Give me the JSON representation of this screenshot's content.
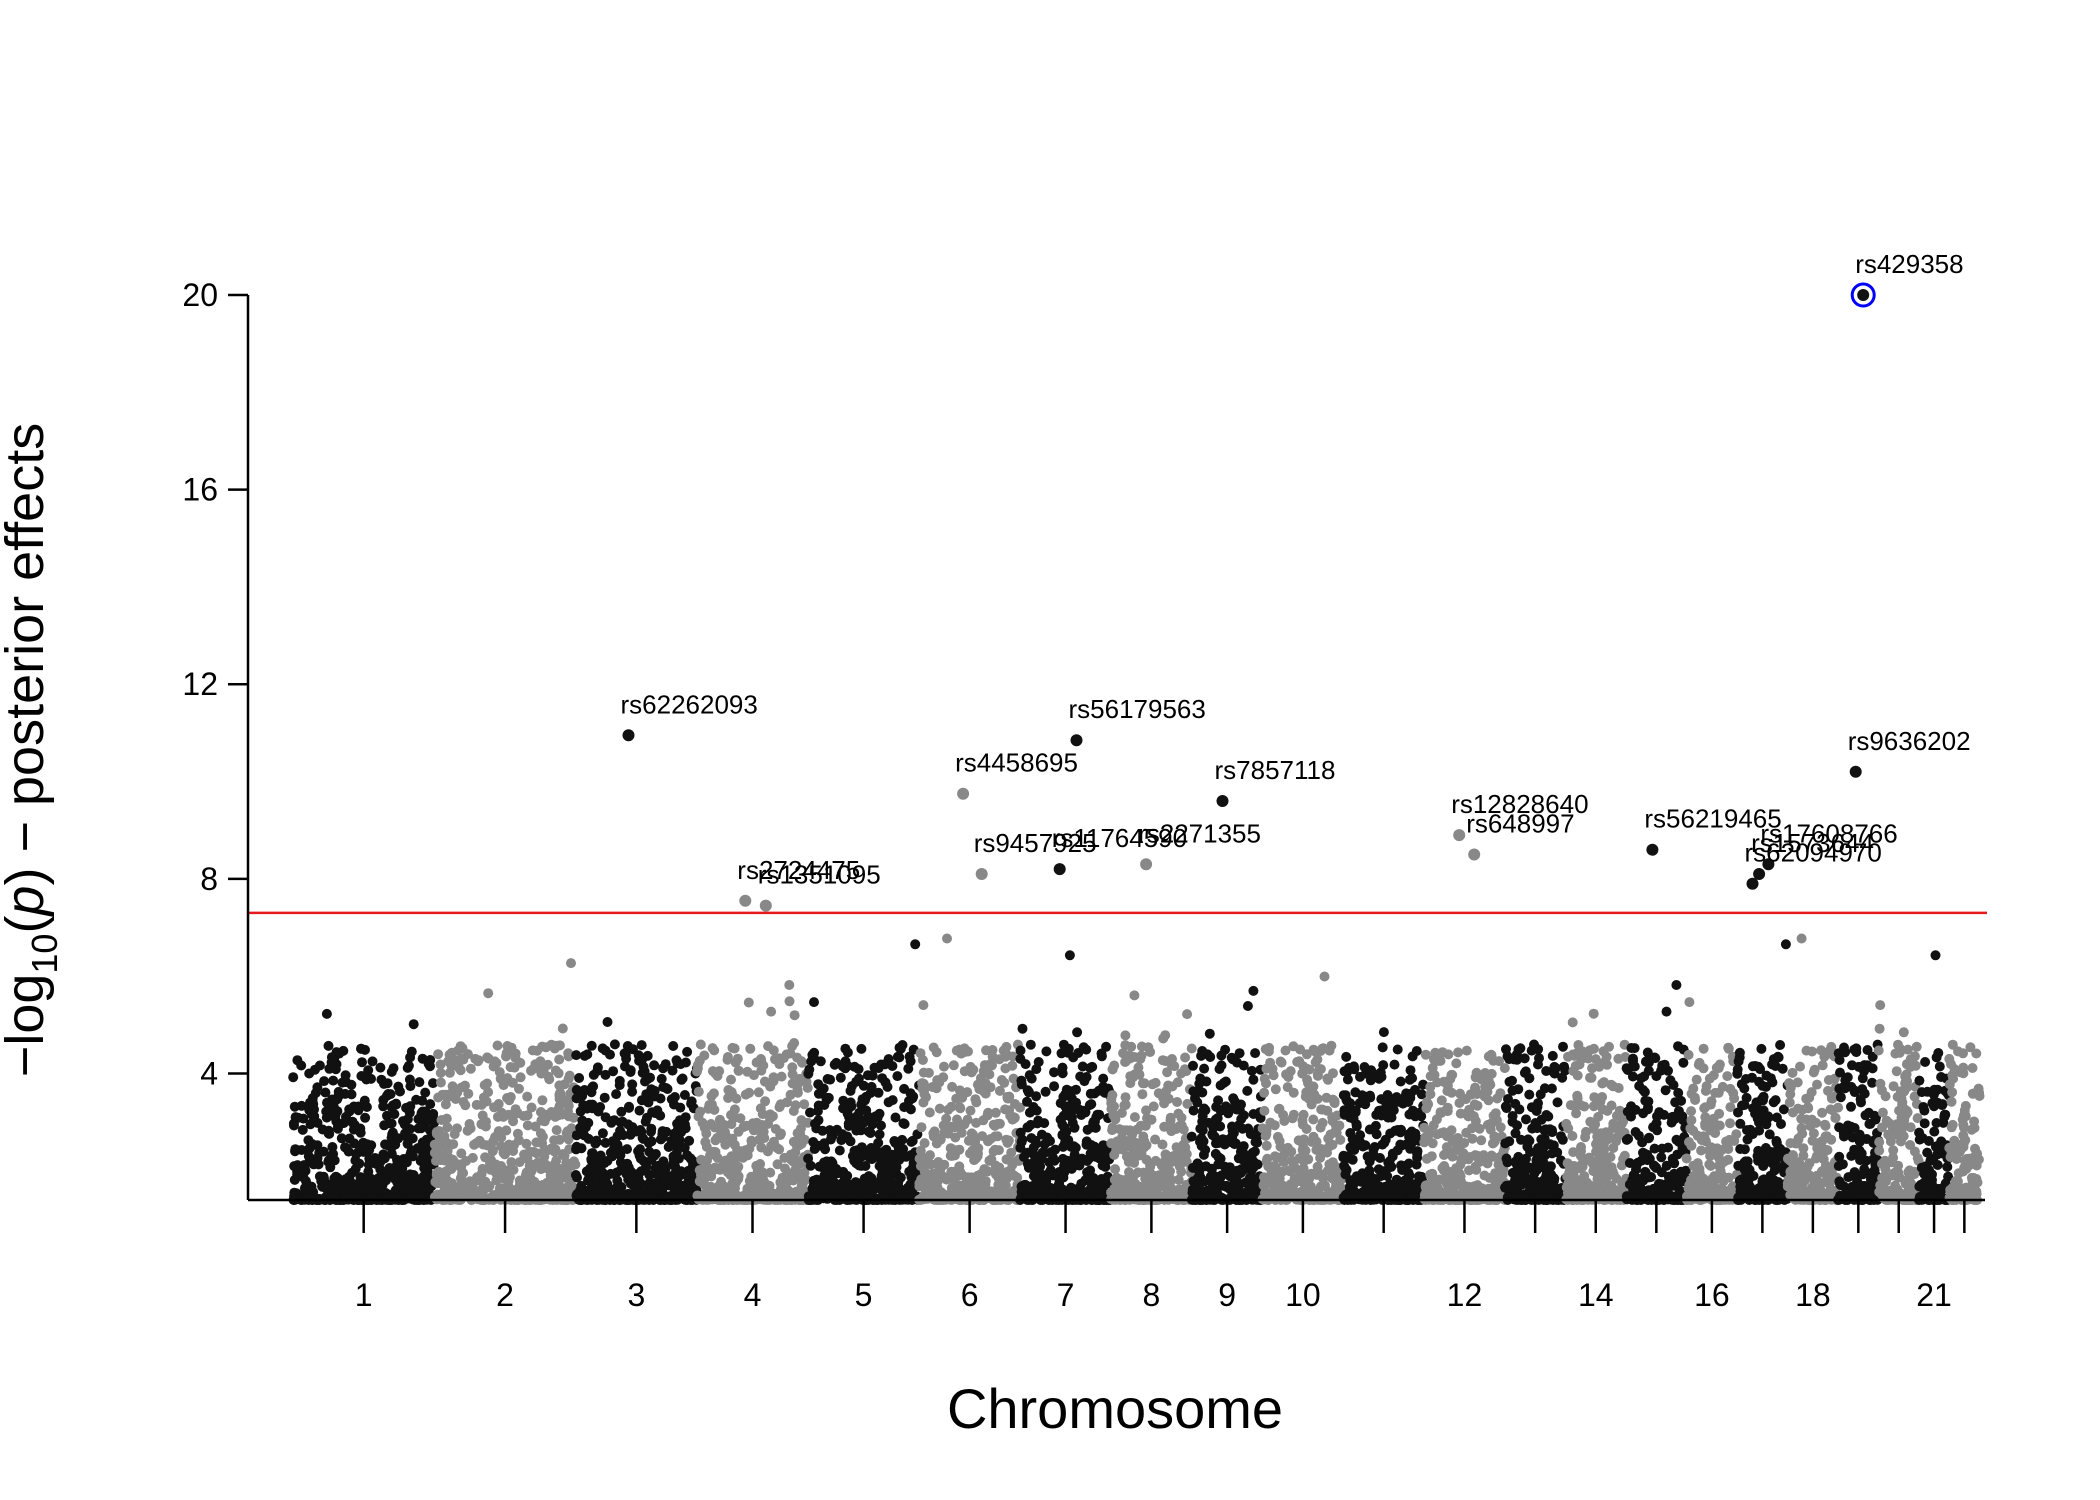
{
  "chart_data": {
    "type": "scatter",
    "title": "",
    "xlabel": "Chromosome",
    "ylabel": "−log10(p) − posterior effects",
    "ylabel_parts": {
      "minus": "−",
      "log": "log",
      "sub": "10",
      "open": "(",
      "p": "p",
      "close": ")",
      "rest": " − posterior effects"
    },
    "ylim": [
      1.4,
      20
    ],
    "yticks": [
      4,
      8,
      12,
      16,
      20
    ],
    "threshold": 7.3,
    "chromosome_x_labels": [
      "1",
      "2",
      "3",
      "4",
      "5",
      "6",
      "7",
      "8",
      "9",
      "10",
      "12",
      "14",
      "16",
      "18",
      "21"
    ],
    "chromosome_spans": [
      {
        "chr": 1,
        "start": 0,
        "end": 14
      },
      {
        "chr": 2,
        "start": 14,
        "end": 28
      },
      {
        "chr": 3,
        "start": 28,
        "end": 40
      },
      {
        "chr": 4,
        "start": 40,
        "end": 51
      },
      {
        "chr": 5,
        "start": 51,
        "end": 62
      },
      {
        "chr": 6,
        "start": 62,
        "end": 72
      },
      {
        "chr": 7,
        "start": 72,
        "end": 81
      },
      {
        "chr": 8,
        "start": 81,
        "end": 89
      },
      {
        "chr": 9,
        "start": 89,
        "end": 96
      },
      {
        "chr": 10,
        "start": 96,
        "end": 104
      },
      {
        "chr": 11,
        "start": 104,
        "end": 112
      },
      {
        "chr": 12,
        "start": 112,
        "end": 120
      },
      {
        "chr": 13,
        "start": 120,
        "end": 126
      },
      {
        "chr": 14,
        "start": 126,
        "end": 132
      },
      {
        "chr": 15,
        "start": 132,
        "end": 138
      },
      {
        "chr": 16,
        "start": 138,
        "end": 143
      },
      {
        "chr": 17,
        "start": 143,
        "end": 148
      },
      {
        "chr": 18,
        "start": 148,
        "end": 153
      },
      {
        "chr": 19,
        "start": 153,
        "end": 157
      },
      {
        "chr": 20,
        "start": 157,
        "end": 161
      },
      {
        "chr": 21,
        "start": 161,
        "end": 164
      },
      {
        "chr": 22,
        "start": 164,
        "end": 167
      }
    ],
    "series": [
      {
        "values": [
          {
            "label": "rs62262093",
            "chr": 3,
            "y": 10.95
          },
          {
            "label": "rs2724475",
            "chr": 4,
            "y": 7.55
          },
          {
            "label": "rs1351095",
            "chr": 4,
            "y": 7.45
          },
          {
            "label": "rs4458695",
            "chr": 6,
            "y": 9.75
          },
          {
            "label": "rs9457925",
            "chr": 6,
            "y": 8.1
          },
          {
            "label": "rs11764590",
            "chr": 7,
            "y": 8.2
          },
          {
            "label": "rs56179563",
            "chr": 7,
            "y": 10.85
          },
          {
            "label": "rs2271355",
            "chr": 8,
            "y": 8.3
          },
          {
            "label": "rs7857118",
            "chr": 9,
            "y": 9.6
          },
          {
            "label": "rs12828640",
            "chr": 12,
            "y": 8.9
          },
          {
            "label": "rs648997",
            "chr": 12,
            "y": 8.5
          },
          {
            "label": "rs56219465",
            "chr": 15,
            "y": 8.6
          },
          {
            "label": "rs1573644",
            "chr": 17,
            "y": 8.1
          },
          {
            "label": "rs17608766",
            "chr": 17,
            "y": 8.3
          },
          {
            "label": "rs62094970",
            "chr": 17,
            "y": 7.9
          },
          {
            "label": "rs9636202",
            "chr": 19,
            "y": 10.2
          },
          {
            "label": "rs429358",
            "chr": 19,
            "y": 20.0,
            "highlighted": true
          }
        ]
      }
    ],
    "colors": {
      "odd": "#111111",
      "even": "#888888",
      "threshold": "#e41a1c",
      "highlight": "#0000ff"
    }
  }
}
